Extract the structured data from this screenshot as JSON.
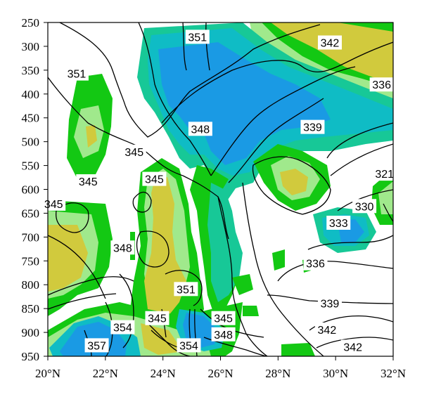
{
  "chart_data": {
    "type": "contour",
    "x_ticks": [
      "20°N",
      "22°N",
      "24°N",
      "26°N",
      "28°N",
      "30°N",
      "32°N"
    ],
    "y_ticks": [
      "250",
      "300",
      "350",
      "400",
      "450",
      "500",
      "550",
      "600",
      "650",
      "700",
      "750",
      "800",
      "850",
      "900",
      "950"
    ],
    "xlim": [
      20,
      32
    ],
    "ylim": [
      950,
      250
    ],
    "fill_colors": {
      "light_green": "#a0e98c",
      "green": "#13c813",
      "teal": "#17c897",
      "cyan": "#0fbcc5",
      "blue": "#1a9ae4",
      "yellow": "#d1ca3d"
    },
    "contour_labels": [
      {
        "text": "351",
        "x": 25.2,
        "y": 280
      },
      {
        "text": "342",
        "x": 29.8,
        "y": 292
      },
      {
        "text": "351",
        "x": 21.0,
        "y": 357
      },
      {
        "text": "336",
        "x": 31.6,
        "y": 380
      },
      {
        "text": "348",
        "x": 25.3,
        "y": 473
      },
      {
        "text": "339",
        "x": 29.2,
        "y": 469
      },
      {
        "text": "345",
        "x": 23.0,
        "y": 521
      },
      {
        "text": "345",
        "x": 23.7,
        "y": 578
      },
      {
        "text": "345",
        "x": 21.4,
        "y": 583
      },
      {
        "text": "321",
        "x": 31.7,
        "y": 567
      },
      {
        "text": "345",
        "x": 20.2,
        "y": 630
      },
      {
        "text": "330",
        "x": 31.0,
        "y": 635
      },
      {
        "text": "333",
        "x": 30.1,
        "y": 670
      },
      {
        "text": "348",
        "x": 22.6,
        "y": 722
      },
      {
        "text": "336",
        "x": 29.3,
        "y": 755
      },
      {
        "text": "351",
        "x": 24.8,
        "y": 809
      },
      {
        "text": "339",
        "x": 29.8,
        "y": 839
      },
      {
        "text": "345",
        "x": 23.8,
        "y": 870
      },
      {
        "text": "345",
        "x": 26.1,
        "y": 870
      },
      {
        "text": "354",
        "x": 22.6,
        "y": 889
      },
      {
        "text": "342",
        "x": 29.7,
        "y": 894
      },
      {
        "text": "348",
        "x": 26.1,
        "y": 904
      },
      {
        "text": "357",
        "x": 21.7,
        "y": 927
      },
      {
        "text": "354",
        "x": 24.9,
        "y": 927
      },
      {
        "text": "342",
        "x": 30.6,
        "y": 930
      }
    ]
  }
}
